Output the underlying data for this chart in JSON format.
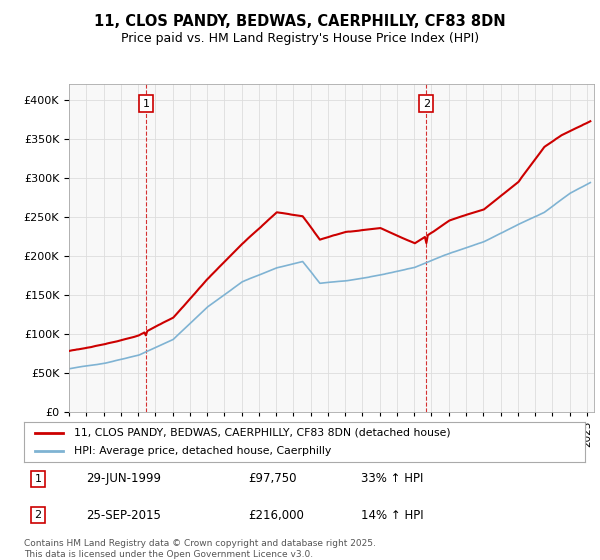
{
  "title_line1": "11, CLOS PANDY, BEDWAS, CAERPHILLY, CF83 8DN",
  "title_line2": "Price paid vs. HM Land Registry's House Price Index (HPI)",
  "legend_line1": "11, CLOS PANDY, BEDWAS, CAERPHILLY, CF83 8DN (detached house)",
  "legend_line2": "HPI: Average price, detached house, Caerphilly",
  "red_color": "#cc0000",
  "blue_color": "#7fb3d3",
  "marker1_year": 1999,
  "marker1_month": 6,
  "marker1_price": 97750,
  "marker2_year": 2015,
  "marker2_month": 9,
  "marker2_price": 216000,
  "ylim_max": 420000,
  "footer_line1": "Contains HM Land Registry data © Crown copyright and database right 2025.",
  "footer_line2": "This data is licensed under the Open Government Licence v3.0.",
  "background_color": "#f8f8f8",
  "grid_color": "#dddddd",
  "ann_row1_date": "29-JUN-1999",
  "ann_row1_price": "£97,750",
  "ann_row1_hpi": "33% ↑ HPI",
  "ann_row2_date": "25-SEP-2015",
  "ann_row2_price": "£216,000",
  "ann_row2_hpi": "14% ↑ HPI"
}
